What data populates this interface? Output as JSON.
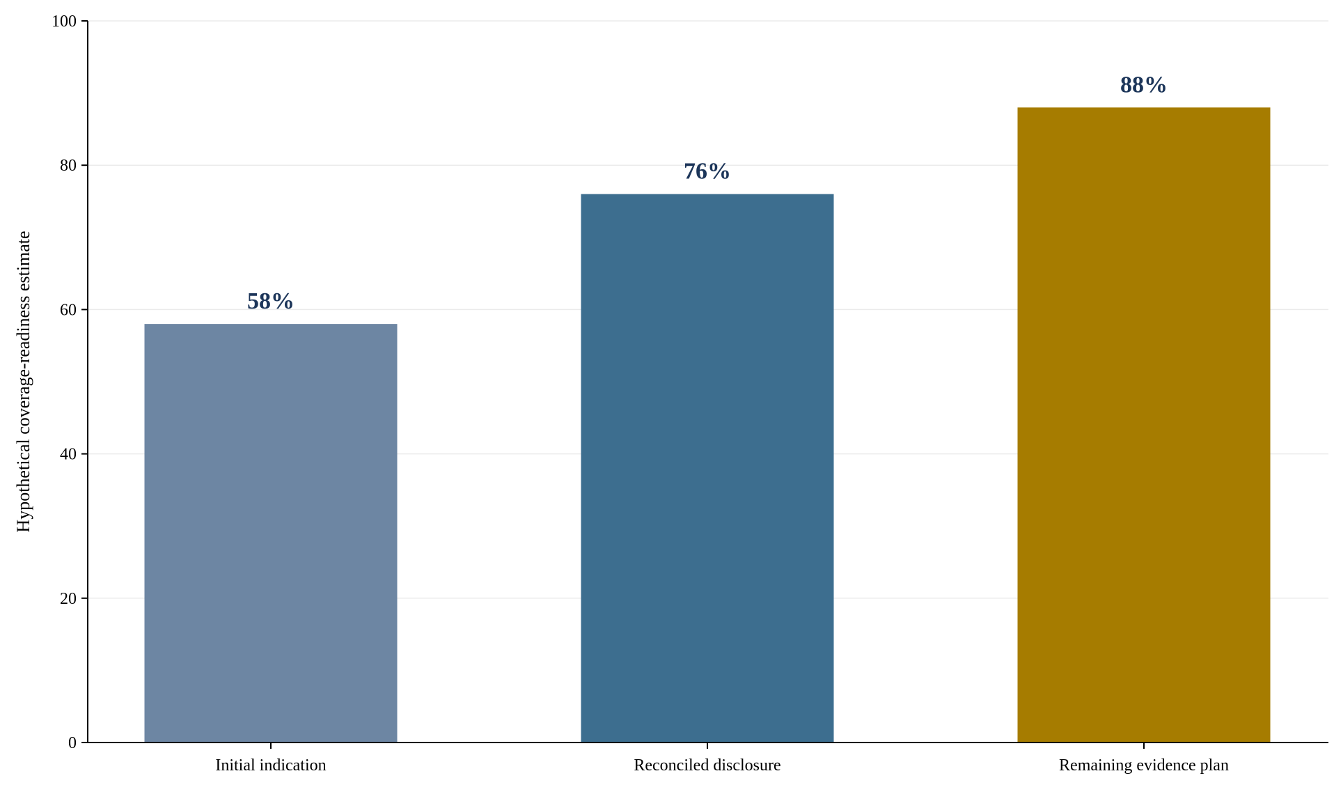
{
  "chart_data": {
    "type": "bar",
    "categories": [
      "Initial indication",
      "Reconciled disclosure",
      "Remaining evidence plan"
    ],
    "values": [
      58,
      76,
      88
    ],
    "data_labels": [
      "58%",
      "76%",
      "88%"
    ],
    "title": "",
    "xlabel": "",
    "ylabel": "Hypothetical coverage-readiness estimate",
    "ylim": [
      0,
      100
    ],
    "yticks": [
      0,
      20,
      40,
      60,
      80,
      100
    ],
    "grid": "horizontal",
    "legend": "none",
    "bar_colors": [
      "#6d86a3",
      "#3d6e8f",
      "#a67c00"
    ],
    "data_label_color": "#1c3559",
    "grid_color": "#ebebeb",
    "axis_color": "#000000"
  }
}
